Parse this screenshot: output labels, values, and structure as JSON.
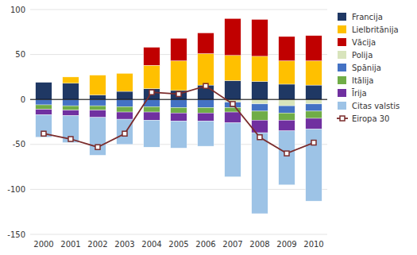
{
  "chart_data": {
    "type": "bar",
    "stacked": true,
    "grid": true,
    "legend": "right",
    "categories": [
      "2000",
      "2001",
      "2002",
      "2003",
      "2004",
      "2005",
      "2006",
      "2007",
      "2008",
      "2009",
      "2010"
    ],
    "series": [
      {
        "name": "Francija",
        "color": "#1f3864",
        "values": [
          19,
          18,
          5,
          9,
          12,
          10,
          16,
          21,
          20,
          17,
          16
        ]
      },
      {
        "name": "Lielbritānija",
        "color": "#ffc000",
        "values": [
          0,
          7,
          22,
          20,
          26,
          33,
          35,
          28,
          28,
          26,
          27
        ]
      },
      {
        "name": "Vācija",
        "color": "#c00000",
        "values": [
          0,
          0,
          0,
          0,
          20,
          25,
          23,
          41,
          41,
          27,
          28
        ]
      },
      {
        "name": "Polija",
        "color": "#d8e4bc",
        "values": [
          0,
          0,
          0,
          0,
          0,
          0,
          0,
          -3,
          -5,
          -7,
          -5
        ]
      },
      {
        "name": "Spānija",
        "color": "#4472c4",
        "values": [
          -6,
          -7,
          -7,
          -8,
          -8,
          -9,
          -9,
          -6,
          -8,
          -8,
          -8
        ]
      },
      {
        "name": "Itālija",
        "color": "#70ad47",
        "values": [
          -5,
          -5,
          -5,
          -6,
          -6,
          -6,
          -6,
          -5,
          -10,
          -8,
          -8
        ]
      },
      {
        "name": "Īrija",
        "color": "#7030a0",
        "values": [
          -6,
          -6,
          -8,
          -8,
          -9,
          -9,
          -9,
          -12,
          -14,
          -12,
          -12
        ]
      },
      {
        "name": "Citas valstis",
        "color": "#9dc3e6",
        "values": [
          -25,
          -30,
          -42,
          -28,
          -30,
          -30,
          -28,
          -60,
          -90,
          -60,
          -80
        ]
      },
      {
        "name": "Eiropa 30",
        "type": "line",
        "marker": "square",
        "color": "#7b2c2c",
        "values": [
          -38,
          -44,
          -53,
          -38,
          8,
          6,
          15,
          -5,
          -42,
          -60,
          -48
        ]
      }
    ],
    "ylim": [
      -150,
      100
    ],
    "yticks": [
      -150,
      -100,
      -50,
      0,
      50,
      100
    ]
  }
}
